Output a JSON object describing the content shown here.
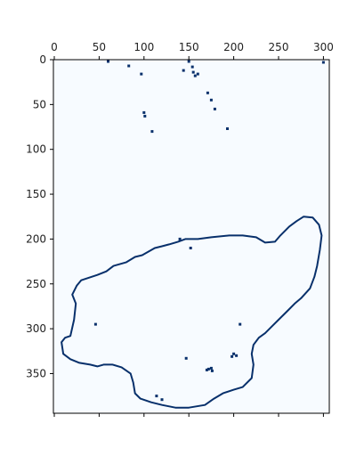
{
  "chart_data": {
    "type": "heatmap",
    "title": "",
    "xlabel": "",
    "ylabel": "",
    "xlim": [
      0,
      305
    ],
    "ylim": [
      0,
      390
    ],
    "x_origin": "top",
    "y_direction": "down",
    "x_ticks": [
      "0",
      "50",
      "100",
      "150",
      "200",
      "250",
      "300"
    ],
    "x_tick_values": [
      0,
      50,
      100,
      150,
      200,
      250,
      300
    ],
    "y_ticks": [
      "0",
      "50",
      "100",
      "150",
      "200",
      "250",
      "300",
      "350"
    ],
    "y_tick_values": [
      0,
      50,
      100,
      150,
      200,
      250,
      300,
      350
    ],
    "grid": false,
    "colormap": {
      "low": "#f7fbff",
      "high": "#08306b"
    },
    "outline": [
      [
        8,
        315
      ],
      [
        12,
        310
      ],
      [
        18,
        308
      ],
      [
        22,
        290
      ],
      [
        24,
        272
      ],
      [
        20,
        262
      ],
      [
        25,
        252
      ],
      [
        30,
        246
      ],
      [
        48,
        240
      ],
      [
        58,
        236
      ],
      [
        66,
        230
      ],
      [
        80,
        226
      ],
      [
        90,
        220
      ],
      [
        98,
        218
      ],
      [
        112,
        210
      ],
      [
        120,
        208
      ],
      [
        128,
        206
      ],
      [
        138,
        203
      ],
      [
        146,
        200
      ],
      [
        160,
        200
      ],
      [
        175,
        198
      ],
      [
        195,
        196
      ],
      [
        210,
        196
      ],
      [
        225,
        198
      ],
      [
        235,
        204
      ],
      [
        246,
        203
      ],
      [
        252,
        196
      ],
      [
        262,
        186
      ],
      [
        270,
        180
      ],
      [
        278,
        175
      ],
      [
        288,
        176
      ],
      [
        295,
        184
      ],
      [
        298,
        196
      ],
      [
        296,
        212
      ],
      [
        293,
        230
      ],
      [
        290,
        242
      ],
      [
        285,
        255
      ],
      [
        275,
        266
      ],
      [
        268,
        272
      ],
      [
        260,
        280
      ],
      [
        250,
        290
      ],
      [
        242,
        298
      ],
      [
        235,
        305
      ],
      [
        228,
        310
      ],
      [
        222,
        318
      ],
      [
        220,
        328
      ],
      [
        222,
        340
      ],
      [
        220,
        355
      ],
      [
        210,
        365
      ],
      [
        200,
        368
      ],
      [
        188,
        372
      ],
      [
        178,
        378
      ],
      [
        168,
        385
      ],
      [
        150,
        388
      ],
      [
        135,
        388
      ],
      [
        120,
        385
      ],
      [
        108,
        382
      ],
      [
        96,
        378
      ],
      [
        90,
        372
      ],
      [
        88,
        360
      ],
      [
        85,
        350
      ],
      [
        75,
        343
      ],
      [
        65,
        340
      ],
      [
        55,
        340
      ],
      [
        48,
        342
      ],
      [
        40,
        340
      ],
      [
        28,
        338
      ],
      [
        18,
        334
      ],
      [
        10,
        328
      ],
      [
        8,
        315
      ]
    ],
    "points": [
      [
        60,
        2
      ],
      [
        83,
        7
      ],
      [
        97,
        16
      ],
      [
        100,
        59
      ],
      [
        101,
        63
      ],
      [
        109,
        80
      ],
      [
        150,
        2
      ],
      [
        154,
        8
      ],
      [
        155,
        14
      ],
      [
        157,
        18
      ],
      [
        144,
        12
      ],
      [
        160,
        16
      ],
      [
        171,
        37
      ],
      [
        175,
        45
      ],
      [
        179,
        55
      ],
      [
        193,
        77
      ],
      [
        300,
        3
      ],
      [
        46,
        295
      ],
      [
        147,
        333
      ],
      [
        170,
        346
      ],
      [
        172,
        345
      ],
      [
        175,
        344
      ],
      [
        200,
        328
      ],
      [
        203,
        330
      ],
      [
        114,
        375
      ],
      [
        120,
        379
      ],
      [
        152,
        210
      ],
      [
        207,
        295
      ],
      [
        176,
        347
      ],
      [
        198,
        331
      ],
      [
        140,
        200
      ]
    ]
  }
}
